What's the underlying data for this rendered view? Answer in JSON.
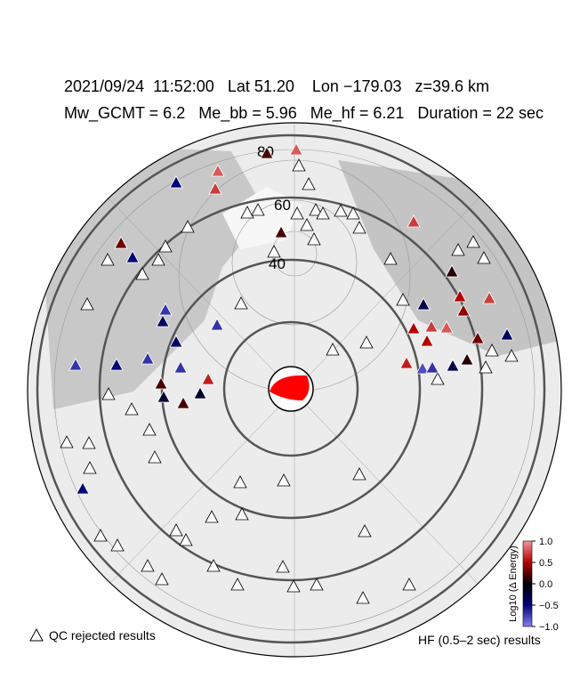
{
  "header": {
    "line1": "2021/09/24  11:52:00   Lat 51.20    Lon −179.03   z=39.6 km",
    "line2": "Mw_GCMT = 6.2   Me_bb = 5.96   Me_hf = 6.21   Duration = 22 sec"
  },
  "latitude_labels": [
    "80",
    "60",
    "40"
  ],
  "legend": {
    "rejected": "QC rejected results",
    "results": "HF (0.5–2 sec) results"
  },
  "colorbar": {
    "label": "Log10 (Δ Energy)",
    "lim": [
      -1,
      1
    ],
    "ticks": [
      {
        "value": 1,
        "label": "1.0"
      },
      {
        "value": 0.5,
        "label": "0.5"
      },
      {
        "value": 0,
        "label": "0.0"
      },
      {
        "value": -0.5,
        "label": "−0.5"
      },
      {
        "value": -1,
        "label": "−1.0"
      }
    ]
  },
  "station_values": [
    0.2,
    0.8,
    0.8,
    -0.5,
    0.7,
    0.2,
    0.7,
    0.3,
    -0.5,
    0.1,
    0.5,
    0.7,
    -0.7,
    -0.4,
    -0.3,
    0.4,
    -0.7,
    -0.4,
    0.5,
    0.7,
    0.8,
    -0.4,
    0.3,
    0.5,
    -0.7,
    -0.5,
    -0.7,
    -0.7,
    0.6,
    -0.2,
    0.2,
    -0.2,
    0.2,
    0.6,
    -0.8,
    -0.7,
    -0.3,
    0.1,
    -0.5
  ]
}
